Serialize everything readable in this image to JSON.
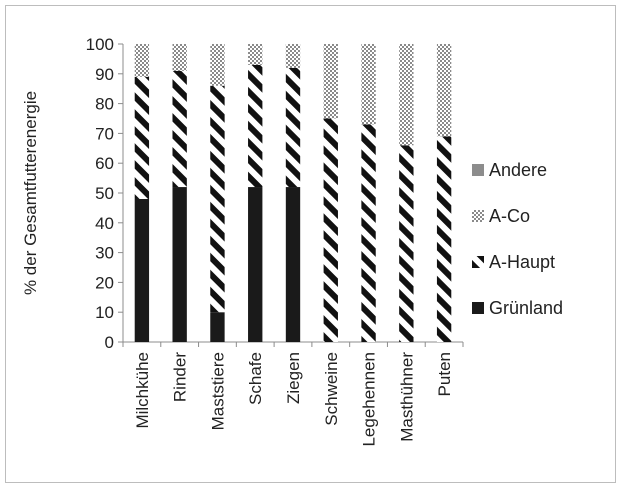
{
  "chart_data": {
    "type": "bar",
    "stacked": true,
    "ylabel": "% der Gesamtfutterenergie",
    "xlabel": "",
    "ylim": [
      0,
      100
    ],
    "yticks": [
      0,
      10,
      20,
      30,
      40,
      50,
      60,
      70,
      80,
      90,
      100
    ],
    "grid": false,
    "legend_position": "right",
    "categories": [
      "Milchkühe",
      "Rinder",
      "Maststiere",
      "Schafe",
      "Ziegen",
      "Schweine",
      "Legehennen",
      "Masthühner",
      "Puten"
    ],
    "series": [
      {
        "name": "Grünland",
        "values": [
          48,
          52,
          10,
          52,
          52,
          0,
          0,
          0,
          0
        ]
      },
      {
        "name": "A-Haupt",
        "values": [
          41,
          39,
          76,
          41,
          40,
          75,
          73,
          66,
          69
        ]
      },
      {
        "name": "A-Co",
        "values": [
          11,
          9,
          14,
          7,
          8,
          25,
          27,
          34,
          31
        ]
      },
      {
        "name": "Andere",
        "values": [
          0,
          0,
          0,
          0,
          0,
          0,
          0,
          0,
          0
        ]
      }
    ],
    "legend_order": [
      "Andere",
      "A-Co",
      "A-Haupt",
      "Grünland"
    ],
    "colors": {
      "Grünland": "#1a1a1a",
      "A-Haupt": "#111111",
      "A-Co": "#9a9a9a",
      "Andere": "#8c8c8c"
    }
  }
}
